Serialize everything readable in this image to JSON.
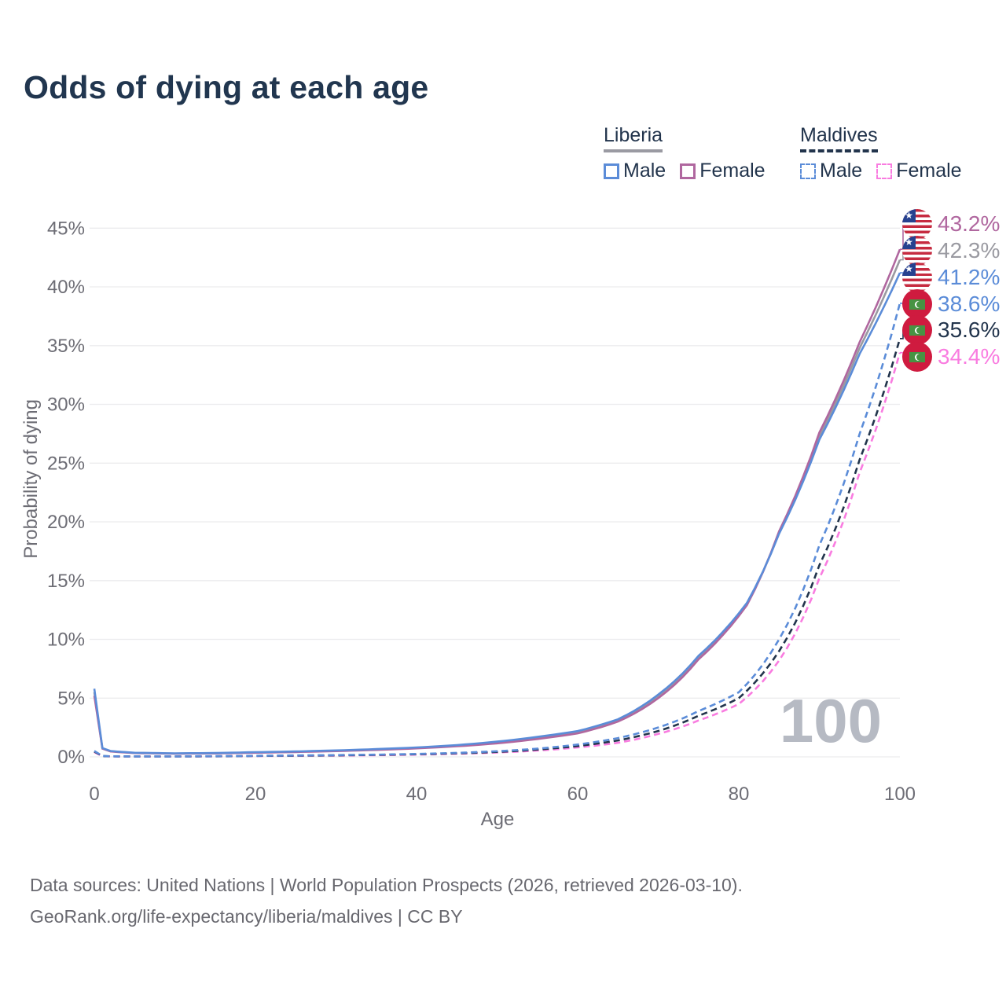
{
  "title": "Odds of dying at each age",
  "watermark_age": "100",
  "legend": {
    "groups": [
      {
        "label": "Liberia",
        "line_style": "solid",
        "underline_color": "#9a9aa2",
        "items": [
          {
            "label": "Male",
            "color": "#5b8cd8"
          },
          {
            "label": "Female",
            "color": "#b0679f"
          }
        ]
      },
      {
        "label": "Maldives",
        "line_style": "dashed",
        "underline_color": "#22344c",
        "items": [
          {
            "label": "Male",
            "color": "#5b8cd8"
          },
          {
            "label": "Female",
            "color": "#f97ce0"
          }
        ]
      }
    ]
  },
  "end_labels": [
    {
      "country": "Liberia",
      "flag": "liberia-flag",
      "value": "43.2%",
      "value_pct": 43.2,
      "color": "#b0679f"
    },
    {
      "country": "Liberia",
      "flag": "liberia-flag",
      "value": "42.3%",
      "value_pct": 42.3,
      "color": "#9a9aa1"
    },
    {
      "country": "Liberia",
      "flag": "liberia-flag",
      "value": "41.2%",
      "value_pct": 41.2,
      "color": "#5b8cd8"
    },
    {
      "country": "Maldives",
      "flag": "maldives-flag",
      "value": "38.6%",
      "value_pct": 38.6,
      "color": "#5b8cd8"
    },
    {
      "country": "Maldives",
      "flag": "maldives-flag",
      "value": "35.6%",
      "value_pct": 35.6,
      "color": "#22344c"
    },
    {
      "country": "Maldives",
      "flag": "maldives-flag",
      "value": "34.4%",
      "value_pct": 34.4,
      "color": "#f97ce0"
    }
  ],
  "footer": {
    "line1": "Data sources: United Nations | World Population Prospects (2026, retrieved 2026-03-10).",
    "line2": "GeoRank.org/life-expectancy/liberia/maldives | CC BY"
  },
  "chart_data": {
    "type": "line",
    "title": "Odds of dying at each age",
    "xlabel": "Age",
    "ylabel": "Probability of dying",
    "xlim": [
      0,
      100
    ],
    "ylim_pct": [
      0,
      45
    ],
    "xticks": [
      0,
      20,
      40,
      60,
      80,
      100
    ],
    "yticks_pct": [
      0,
      5,
      10,
      15,
      20,
      25,
      30,
      35,
      40,
      45
    ],
    "grid": "horizontal",
    "unit": "percent probability of dying at each age",
    "series": [
      {
        "id": "liberia-both",
        "name": "Liberia Both sexes",
        "color": "#9a9aa1",
        "dash": false,
        "end_value_pct": 42.3,
        "points_age_pct": [
          [
            0,
            5.5
          ],
          [
            1,
            0.72
          ],
          [
            2,
            0.48
          ],
          [
            5,
            0.34
          ],
          [
            10,
            0.28
          ],
          [
            15,
            0.31
          ],
          [
            20,
            0.37
          ],
          [
            25,
            0.43
          ],
          [
            30,
            0.52
          ],
          [
            35,
            0.62
          ],
          [
            40,
            0.76
          ],
          [
            45,
            0.95
          ],
          [
            50,
            1.22
          ],
          [
            55,
            1.6
          ],
          [
            60,
            2.1
          ],
          [
            65,
            3.1
          ],
          [
            70,
            5.15
          ],
          [
            75,
            8.45
          ],
          [
            81,
            13.0
          ],
          [
            85,
            19.1
          ],
          [
            90,
            27.3
          ],
          [
            95,
            34.8
          ],
          [
            100,
            42.3
          ]
        ]
      },
      {
        "id": "liberia-female",
        "name": "Liberia Female",
        "color": "#b0679f",
        "dash": false,
        "end_value_pct": 43.2,
        "points_age_pct": [
          [
            0,
            5.2
          ],
          [
            1,
            0.7
          ],
          [
            2,
            0.46
          ],
          [
            5,
            0.32
          ],
          [
            10,
            0.27
          ],
          [
            15,
            0.29
          ],
          [
            20,
            0.35
          ],
          [
            25,
            0.41
          ],
          [
            30,
            0.49
          ],
          [
            35,
            0.59
          ],
          [
            40,
            0.72
          ],
          [
            45,
            0.9
          ],
          [
            50,
            1.15
          ],
          [
            55,
            1.52
          ],
          [
            60,
            2.0
          ],
          [
            65,
            3.0
          ],
          [
            70,
            5.0
          ],
          [
            75,
            8.3
          ],
          [
            81,
            12.9
          ],
          [
            85,
            19.2
          ],
          [
            90,
            27.6
          ],
          [
            95,
            35.3
          ],
          [
            100,
            43.2
          ]
        ]
      },
      {
        "id": "liberia-male",
        "name": "Liberia Male",
        "color": "#5b8cd8",
        "dash": false,
        "end_value_pct": 41.2,
        "points_age_pct": [
          [
            0,
            5.8
          ],
          [
            1,
            0.75
          ],
          [
            2,
            0.5
          ],
          [
            5,
            0.35
          ],
          [
            10,
            0.3
          ],
          [
            15,
            0.33
          ],
          [
            20,
            0.4
          ],
          [
            25,
            0.46
          ],
          [
            30,
            0.55
          ],
          [
            35,
            0.66
          ],
          [
            40,
            0.8
          ],
          [
            45,
            1.0
          ],
          [
            50,
            1.3
          ],
          [
            55,
            1.7
          ],
          [
            60,
            2.2
          ],
          [
            65,
            3.2
          ],
          [
            70,
            5.3
          ],
          [
            75,
            8.6
          ],
          [
            81,
            13.1
          ],
          [
            85,
            19.0
          ],
          [
            90,
            27.0
          ],
          [
            95,
            34.3
          ],
          [
            100,
            41.2
          ]
        ]
      },
      {
        "id": "maldives-female",
        "name": "Maldives Female",
        "color": "#f97ce0",
        "dash": true,
        "end_value_pct": 34.4,
        "points_age_pct": [
          [
            0,
            0.4
          ],
          [
            1,
            0.06
          ],
          [
            2,
            0.04
          ],
          [
            5,
            0.03
          ],
          [
            10,
            0.03
          ],
          [
            15,
            0.045
          ],
          [
            20,
            0.07
          ],
          [
            25,
            0.09
          ],
          [
            30,
            0.11
          ],
          [
            35,
            0.14
          ],
          [
            40,
            0.19
          ],
          [
            45,
            0.26
          ],
          [
            50,
            0.37
          ],
          [
            55,
            0.54
          ],
          [
            60,
            0.8
          ],
          [
            65,
            1.2
          ],
          [
            70,
            1.95
          ],
          [
            75,
            3.1
          ],
          [
            80,
            4.5
          ],
          [
            85,
            8.2
          ],
          [
            90,
            15.2
          ],
          [
            95,
            24.2
          ],
          [
            100,
            34.4
          ]
        ]
      },
      {
        "id": "maldives-both",
        "name": "Maldives Both sexes",
        "color": "#22344c",
        "dash": true,
        "end_value_pct": 35.6,
        "points_age_pct": [
          [
            0,
            0.45
          ],
          [
            1,
            0.07
          ],
          [
            2,
            0.045
          ],
          [
            5,
            0.035
          ],
          [
            10,
            0.035
          ],
          [
            15,
            0.05
          ],
          [
            20,
            0.08
          ],
          [
            25,
            0.1
          ],
          [
            30,
            0.13
          ],
          [
            35,
            0.17
          ],
          [
            40,
            0.22
          ],
          [
            45,
            0.3
          ],
          [
            50,
            0.42
          ],
          [
            55,
            0.62
          ],
          [
            60,
            0.92
          ],
          [
            65,
            1.4
          ],
          [
            70,
            2.2
          ],
          [
            75,
            3.5
          ],
          [
            80,
            5.0
          ],
          [
            85,
            9.0
          ],
          [
            90,
            16.3
          ],
          [
            95,
            25.3
          ],
          [
            100,
            35.6
          ]
        ]
      },
      {
        "id": "maldives-male",
        "name": "Maldives Male",
        "color": "#5b8cd8",
        "dash": true,
        "end_value_pct": 38.6,
        "points_age_pct": [
          [
            0,
            0.5
          ],
          [
            1,
            0.08
          ],
          [
            2,
            0.05
          ],
          [
            5,
            0.04
          ],
          [
            10,
            0.04
          ],
          [
            15,
            0.06
          ],
          [
            20,
            0.09
          ],
          [
            25,
            0.12
          ],
          [
            30,
            0.15
          ],
          [
            35,
            0.19
          ],
          [
            40,
            0.25
          ],
          [
            45,
            0.34
          ],
          [
            50,
            0.48
          ],
          [
            55,
            0.7
          ],
          [
            60,
            1.05
          ],
          [
            65,
            1.6
          ],
          [
            70,
            2.5
          ],
          [
            75,
            3.9
          ],
          [
            80,
            5.5
          ],
          [
            85,
            10.0
          ],
          [
            90,
            18.0
          ],
          [
            95,
            27.5
          ],
          [
            100,
            38.6
          ]
        ]
      }
    ]
  }
}
